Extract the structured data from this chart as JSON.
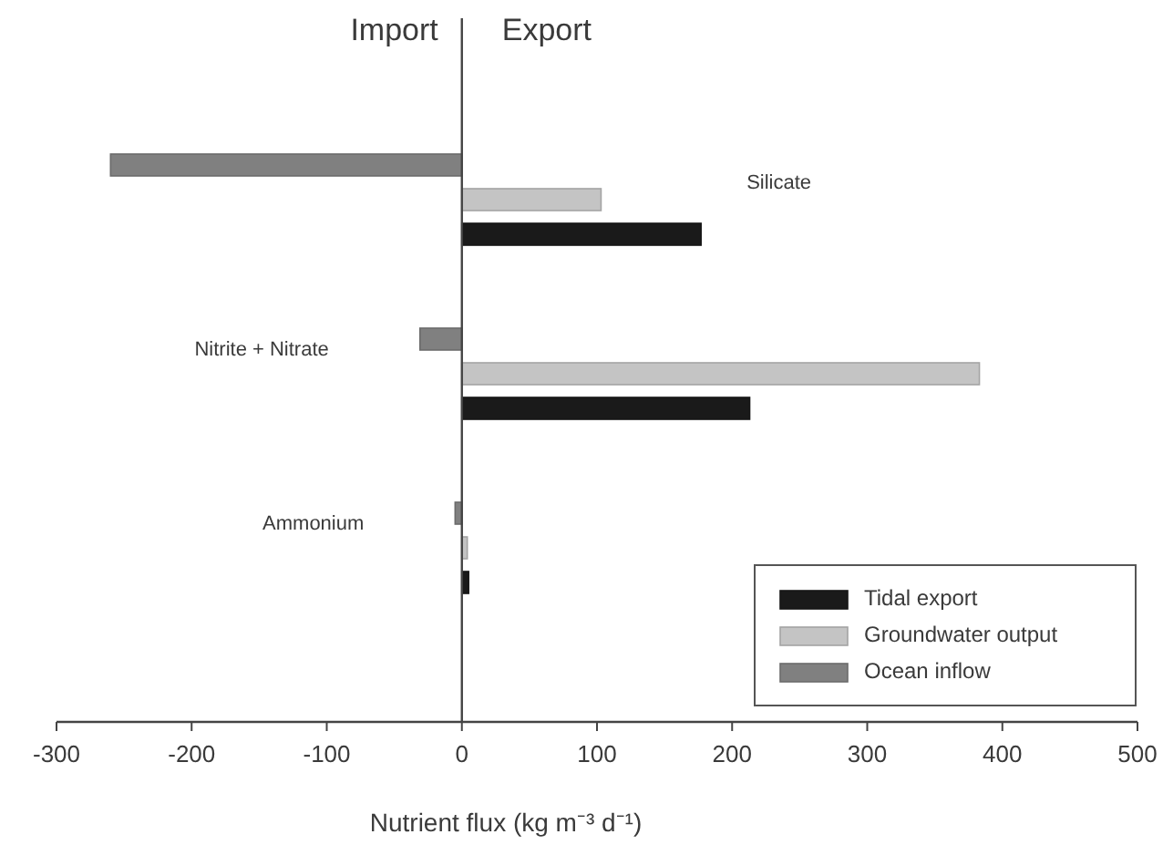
{
  "chart_data": {
    "type": "bar",
    "orientation": "horizontal",
    "categories": [
      "Silicate",
      "Nitrite + Nitrate",
      "Ammonium"
    ],
    "series": [
      {
        "name": "Tidal export",
        "color": "#1a1a1a",
        "values": [
          177,
          213,
          5
        ]
      },
      {
        "name": "Groundwater output",
        "color": "#c4c4c4",
        "values": [
          103,
          383,
          4
        ]
      },
      {
        "name": "Ocean inflow",
        "color": "#808080",
        "values": [
          -260,
          -31,
          -5
        ]
      }
    ],
    "xlim": [
      -300,
      500
    ],
    "xticks": [
      -300,
      -200,
      -100,
      0,
      100,
      200,
      300,
      400,
      500
    ],
    "xlabel": "Nutrient flux (kg m⁻³ d⁻¹)",
    "annotations": [
      "Import",
      "Export"
    ],
    "legend": "bottom right"
  }
}
